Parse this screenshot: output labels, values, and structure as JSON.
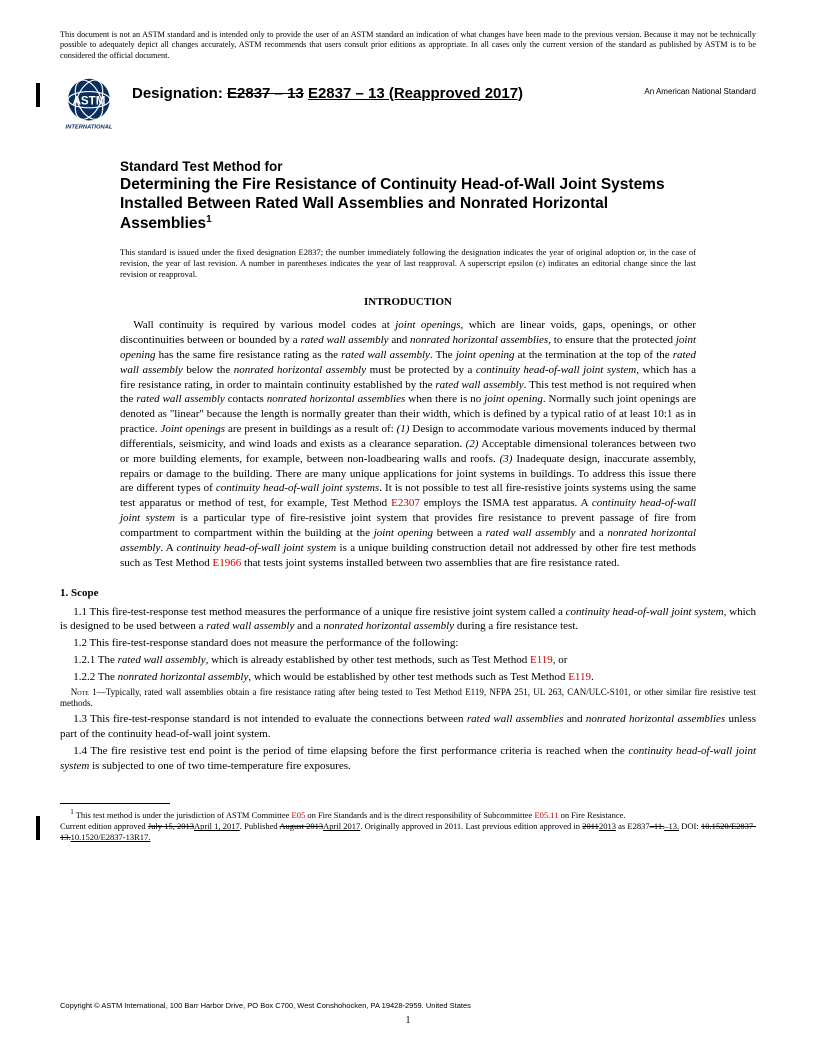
{
  "disclaimer": "This document is not an ASTM standard and is intended only to provide the user of an ASTM standard an indication of what changes have been made to the previous version. Because it may not be technically possible to adequately depict all changes accurately, ASTM recommends that users consult prior editions as appropriate. In all cases only the current version of the standard as published by ASTM is to be considered the official document.",
  "designation": {
    "label": "Designation:",
    "strike": "E2837 – 13",
    "under": "E2837 – 13 (Reapproved 2017)"
  },
  "ans": "An American National Standard",
  "title_pre": "Standard Test Method for",
  "title_main": "Determining the Fire Resistance of Continuity Head-of-Wall Joint Systems Installed Between Rated Wall Assemblies and Nonrated Horizontal Assemblies",
  "title_sup": "1",
  "issuance_note": "This standard is issued under the fixed designation E2837; the number immediately following the designation indicates the year of original adoption or, in the case of revision, the year of last revision. A number in parentheses indicates the year of last reapproval. A superscript epsilon (ε) indicates an editorial change since the last revision or reapproval.",
  "intro_heading": "INTRODUCTION",
  "intro_body_html": "Wall continuity is required by various model codes at <span class='ital'>joint openings</span>, which are linear voids, gaps, openings, or other discontinuities between or bounded by a <span class='ital'>rated wall assembly</span> and <span class='ital'>nonrated horizontal assemblies</span>, to ensure that the protected <span class='ital'>joint opening</span> has the same fire resistance rating as the <span class='ital'>rated wall assembly</span>. The <span class='ital'>joint opening</span> at the termination at the top of the <span class='ital'>rated wall assembly</span> below the <span class='ital'>nonrated horizontal assembly</span> must be protected by a <span class='ital'>continuity head-of-wall joint system</span>, which has a fire resistance rating, in order to maintain continuity established by the <span class='ital'>rated wall assembly</span>. This test method is not required when the <span class='ital'>rated wall assembly</span> contacts <span class='ital'>nonrated horizontal assemblies</span> when there is no <span class='ital'>joint opening</span>. Normally such joint openings are denoted as \"linear\" because the length is normally greater than their width, which is defined by a typical ratio of at least 10:1 as in practice. <span class='ital'>Joint openings</span> are present in buildings as a result of: <span class='ital'>(1)</span> Design to accommodate various movements induced by thermal differentials, seismicity, and wind loads and exists as a clearance separation. <span class='ital'>(2)</span> Acceptable dimensional tolerances between two or more building elements, for example, between non-loadbearing walls and roofs. <span class='ital'>(3)</span> Inadequate design, inaccurate assembly, repairs or damage to the building. There are many unique applications for joint systems in buildings. To address this issue there are different types of <span class='ital'>continuity head-of-wall joint systems</span>. It is not possible to test all fire-resistive joints systems using the same test apparatus or method of test, for example, Test Method <span class='redlink'>E2307</span> employs the ISMA test apparatus. A <span class='ital'>continuity head-of-wall joint system</span> is a particular type of fire-resistive joint system that provides fire resistance to prevent passage of fire from compartment to compartment within the building at the <span class='ital'>joint opening</span> between a <span class='ital'>rated wall assembly</span> and a <span class='ital'>nonrated horizontal assembly</span>. A <span class='ital'>continuity head-of-wall joint system</span> is a unique building construction detail not addressed by other fire test methods such as Test Method <span class='redlink'>E1966</span> that tests joint systems installed between two assemblies that are fire resistance rated.",
  "scope_heading": "1. Scope",
  "scope": {
    "s1_1": "1.1 This fire-test-response test method measures the performance of a unique fire resistive joint system called a <span class='ital'>continuity head-of-wall joint system</span>, which is designed to be used between a <span class='ital'>rated wall assembly</span> and a <span class='ital'>nonrated horizontal assembly</span> during a fire resistance test.",
    "s1_2": "1.2 This fire-test-response standard does not measure the performance of the following:",
    "s1_2_1": "1.2.1 The <span class='ital'>rated wall assembly</span>, which is already established by other test methods, such as Test Method <span class='redlink'>E119</span>, or",
    "s1_2_2": "1.2.2 The <span class='ital'>nonrated horizontal assembly</span>, which would be established by other test methods such as Test Method <span class='redlink'>E119</span>.",
    "note1": "<span class='smallcaps'>Note</span> 1—Typically, rated wall assemblies obtain a fire resistance rating after being tested to Test Method <span class='redlink'>E119</span>, NFPA 251, UL 263, CAN/ULC-S101, or other similar fire resistive test methods.",
    "s1_3": "1.3 This fire-test-response standard is not intended to evaluate the connections between <span class='ital'>rated wall assemblies</span> and <span class='ital'>nonrated horizontal assemblies</span> unless part of the continuity head-of-wall joint system.",
    "s1_4": "1.4 The fire resistive test end point is the period of time elapsing before the first performance criteria is reached when the <span class='ital'>continuity head-of-wall joint system</span> is subjected to one of two time-temperature fire exposures."
  },
  "footnote_html": "<sup>1</sup> This test method is under the jurisdiction of ASTM Committee <span class='redlink'>E05</span> on Fire Standards and is the direct responsibility of Subcommittee <span class='redlink'>E05.11</span> on Fire Resistance.<br>Current edition approved <span class='strike'>July 15, 2013</span><span class='under'>April 1, 2017</span>. Published <span class='strike'>August 2013</span><span class='under'>April 2017</span>. Originally approved in 2011. Last previous edition approved in <span class='strike'>2011</span><span class='under'>2013</span> as E2837<span class='strike'>–11.</span><span class='under'>–13.</span> DOI: <span class='strike'>10.1520/E2837-13.</span><span class='under'>10.1520/E2837-13R17.</span>",
  "copyright": "Copyright © ASTM International, 100 Barr Harbor Drive, PO Box C700, West Conshohocken, PA 19428-2959. United States",
  "page_num": "1"
}
